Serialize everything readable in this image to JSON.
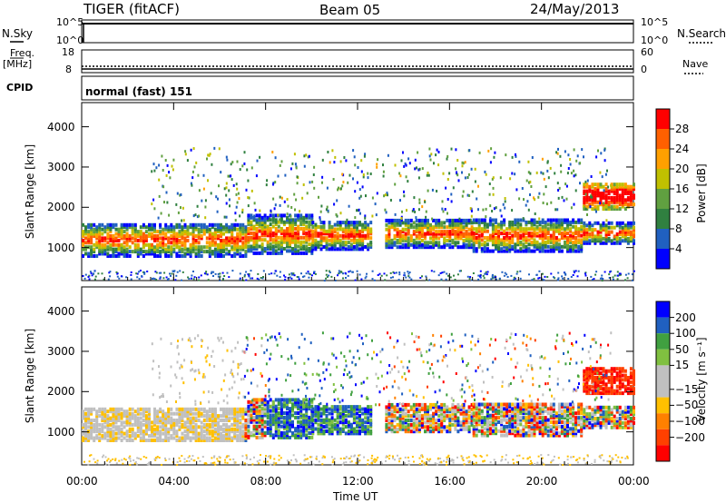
{
  "header": {
    "station": "TIGER (fitACF)",
    "beam": "Beam 05",
    "date": "24/May/2013"
  },
  "strip": {
    "nsky_label": "N.Sky",
    "nsearch_label": "N.Search",
    "freq_label_line1": "Freq.",
    "freq_label_line2": "[MHz]",
    "nave_label": "Nave",
    "cpid_label": "CPID",
    "cpid_text": "normal (fast) 151",
    "nsky_ticks": [
      "10^5",
      "10^0"
    ],
    "nsearch_ticks": [
      "10^5",
      "10^0"
    ],
    "freq_ticks": [
      "18",
      "8"
    ],
    "nave_ticks": [
      "60",
      "0"
    ]
  },
  "colors": {
    "power_scale": [
      "#0000ff",
      "#2060c0",
      "#308040",
      "#60a040",
      "#c0c000",
      "#ffa000",
      "#ff6000",
      "#ff0000"
    ],
    "velocity_scale": [
      "#0000ff",
      "#2060c0",
      "#40a040",
      "#80c040",
      "#c0c0c0",
      "#c0c0c0",
      "#ffc000",
      "#ff8000",
      "#ff4000",
      "#ff0000"
    ]
  },
  "chart_data": [
    {
      "type": "heatmap",
      "title": "",
      "xlabel": "Time UT",
      "ylabel": "Slant Range [km]",
      "xlim": [
        "00:00",
        "24:00"
      ],
      "x_ticks": [
        "00:00",
        "04:00",
        "08:00",
        "12:00",
        "16:00",
        "20:00",
        "00:00"
      ],
      "ylim": [
        180,
        4600
      ],
      "y_ticks": [
        1000,
        2000,
        3000,
        4000
      ],
      "colorbar": {
        "label": "Power [dB]",
        "range": [
          0,
          32
        ],
        "ticks": [
          4,
          8,
          12,
          16,
          20,
          24,
          28
        ]
      },
      "main_echo_band": {
        "description_hours": [
          0,
          24
        ],
        "range_km": [
          800,
          1600
        ]
      }
    },
    {
      "type": "heatmap",
      "title": "",
      "xlabel": "Time UT",
      "ylabel": "Slant Range [km]",
      "xlim": [
        "00:00",
        "24:00"
      ],
      "x_ticks": [
        "00:00",
        "04:00",
        "08:00",
        "12:00",
        "16:00",
        "20:00",
        "00:00"
      ],
      "ylim": [
        180,
        4600
      ],
      "y_ticks": [
        1000,
        2000,
        3000,
        4000
      ],
      "colorbar": {
        "label": "Velocity [m s⁻¹]",
        "ticks": [
          200,
          100,
          50,
          15,
          -15,
          -50,
          -100,
          -200
        ]
      }
    }
  ]
}
